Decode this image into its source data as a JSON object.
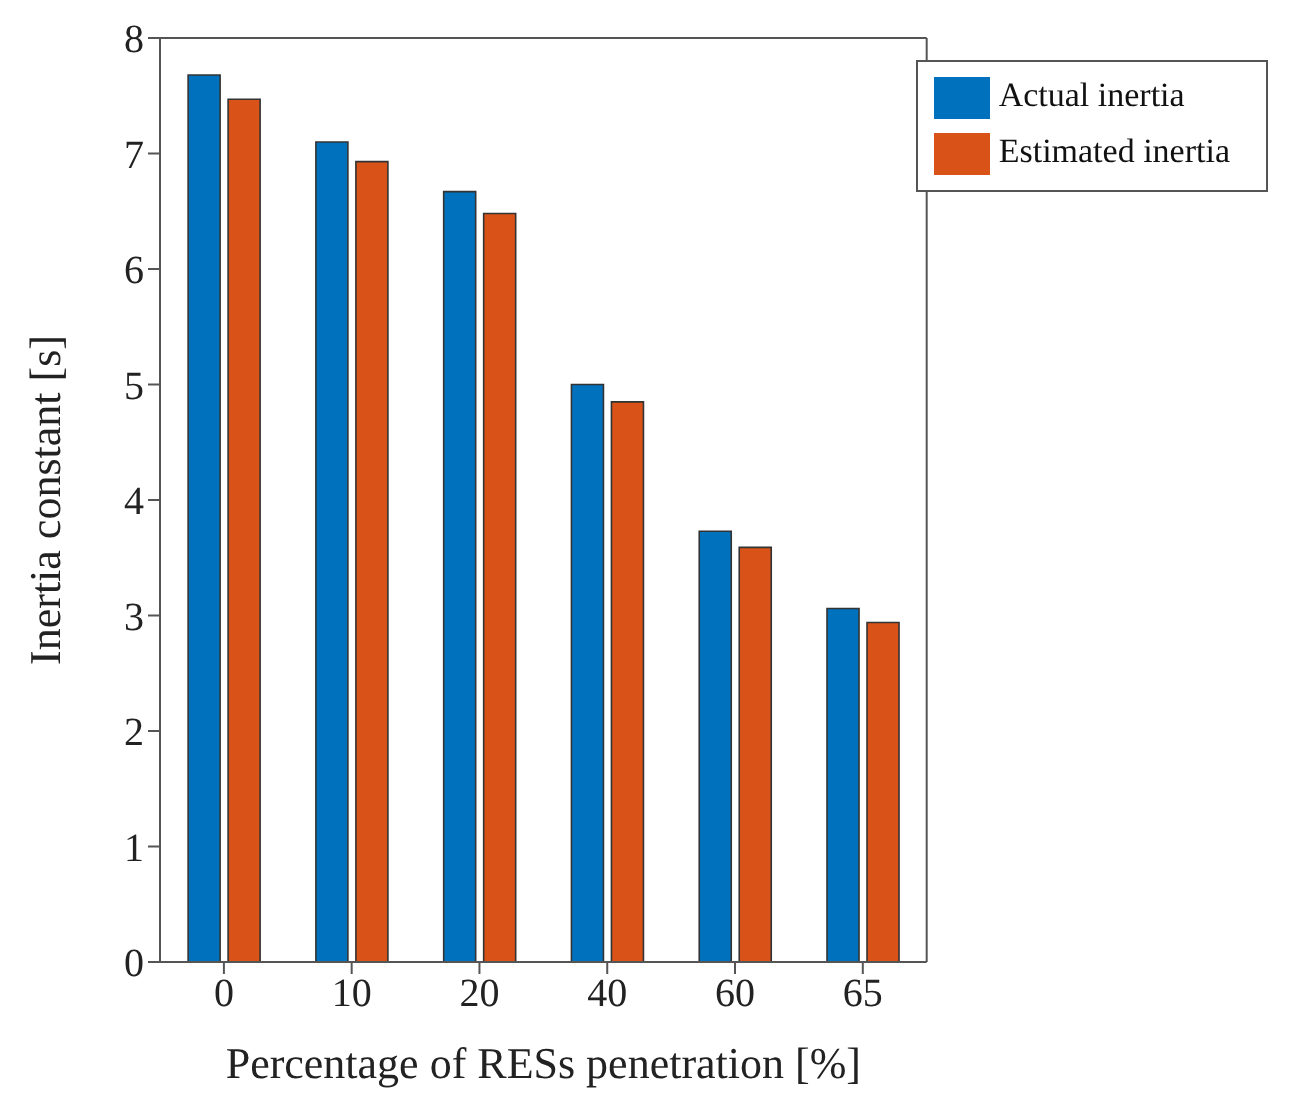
{
  "chart_data": {
    "type": "bar",
    "xlabel": "Percentage of RESs penetration [%]",
    "ylabel": "Inertia constant [s]",
    "categories": [
      "0",
      "10",
      "20",
      "40",
      "60",
      "65"
    ],
    "series": [
      {
        "name": "Actual inertia",
        "color": "#0072bd",
        "values": [
          7.68,
          7.1,
          6.67,
          5.0,
          3.73,
          3.06
        ]
      },
      {
        "name": "Estimated inertia",
        "color": "#d95319",
        "values": [
          7.47,
          6.93,
          6.48,
          4.85,
          3.59,
          2.94
        ]
      }
    ],
    "ylim": [
      0,
      8
    ],
    "yticks": [
      0,
      1,
      2,
      3,
      4,
      5,
      6,
      7,
      8
    ],
    "grid": false,
    "legend": "top right"
  }
}
